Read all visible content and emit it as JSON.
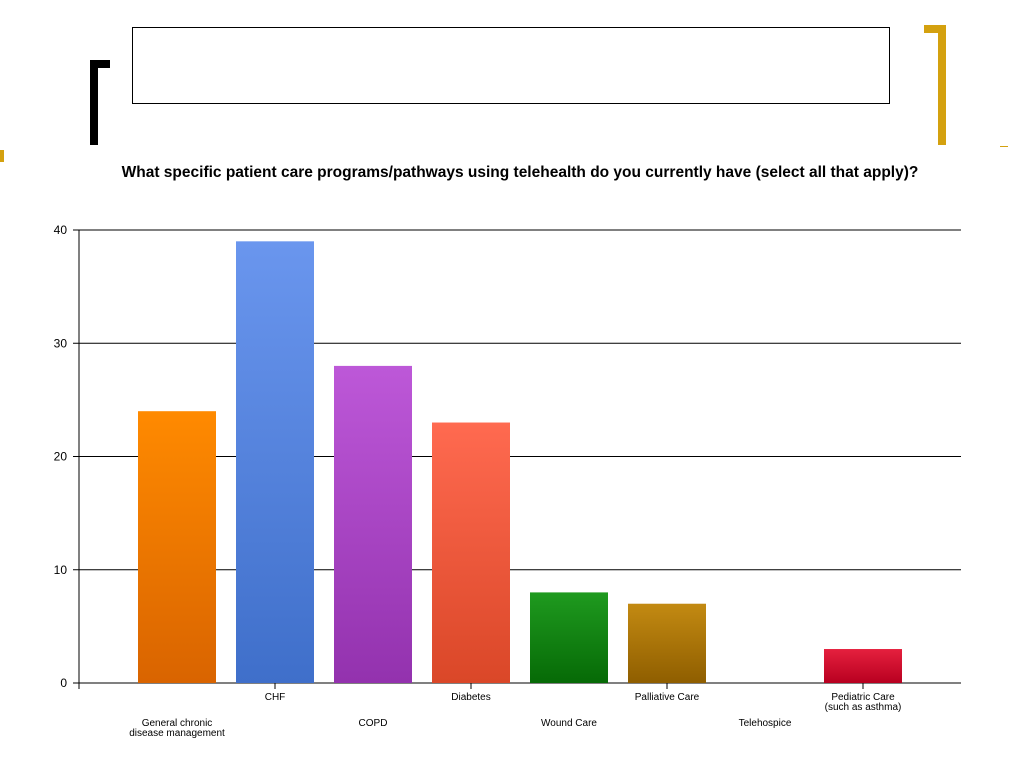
{
  "chart_data": {
    "type": "bar",
    "title": "What specific patient care programs/pathways using telehealth do you currently have (select all that apply)?",
    "xlabel": "",
    "ylabel": "",
    "ylim": [
      0,
      40
    ],
    "yticks": [
      0,
      10,
      20,
      30,
      40
    ],
    "grid": true,
    "categories": [
      "General chronic disease management",
      "CHF",
      "COPD",
      "Diabetes",
      "Wound Care",
      "Palliative Care",
      "Telehospice",
      "Pediatric Care (such as asthma)"
    ],
    "category_label_lines": [
      [
        "General chronic",
        "disease management"
      ],
      [
        "CHF"
      ],
      [
        "COPD"
      ],
      [
        "Diabetes"
      ],
      [
        "Wound Care"
      ],
      [
        "Palliative Care"
      ],
      [
        "Telehospice"
      ],
      [
        "Pediatric Care",
        "(such as asthma)"
      ]
    ],
    "values": [
      24,
      39,
      28,
      23,
      8,
      7,
      0,
      3
    ],
    "colors": [
      [
        "#ff8a00",
        "#d96400"
      ],
      [
        "#6a96ee",
        "#3f6fca"
      ],
      [
        "#bd58d8",
        "#9332ae"
      ],
      [
        "#ff6a50",
        "#da4728"
      ],
      [
        "#1f9a1f",
        "#066a06"
      ],
      [
        "#c38a12",
        "#8f5e00"
      ],
      [
        "#999999",
        "#777777"
      ],
      [
        "#e5203e",
        "#b80020"
      ]
    ]
  }
}
